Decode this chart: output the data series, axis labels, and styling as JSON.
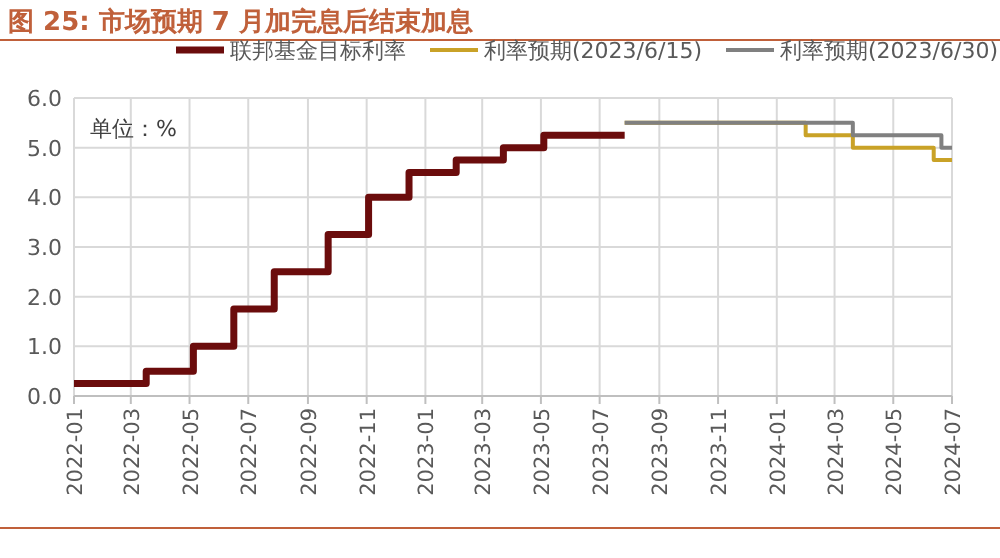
{
  "chart_data": {
    "type": "step",
    "title": "图 25: 市场预期 7 月加完息后结束加息",
    "annotations": [
      "单位：%"
    ],
    "xlim": [
      "2022-01-01",
      "2024-07-01"
    ],
    "xticks": [
      "2022-01",
      "2022-03",
      "2022-05",
      "2022-07",
      "2022-09",
      "2022-11",
      "2023-01",
      "2023-03",
      "2023-05",
      "2023-07",
      "2023-09",
      "2023-11",
      "2024-01",
      "2024-03",
      "2024-05",
      "2024-07"
    ],
    "ylim": [
      0,
      6
    ],
    "yticks": [
      {
        "value": 0,
        "label": "0.0"
      },
      {
        "value": 1,
        "label": "1.0"
      },
      {
        "value": 2,
        "label": "2.0"
      },
      {
        "value": 3,
        "label": "3.0"
      },
      {
        "value": 4,
        "label": "4.0"
      },
      {
        "value": 5,
        "label": "5.0"
      },
      {
        "value": 6,
        "label": "6.0"
      }
    ],
    "grid": true,
    "legend": "top",
    "line_style": "solid",
    "marker": "none",
    "series": [
      {
        "name": "联邦基金目标利率",
        "color": "#6b0c0c",
        "x": [
          "2022-01-01",
          "2022-03-17",
          "2022-05-05",
          "2022-06-16",
          "2022-07-28",
          "2022-09-22",
          "2022-11-03",
          "2022-12-15",
          "2023-02-02",
          "2023-03-23",
          "2023-05-04",
          "2023-07-27"
        ],
        "values": [
          0.25,
          0.5,
          1,
          1.75,
          2.5,
          3.25,
          4,
          4.5,
          4.75,
          5,
          5.25,
          5.25
        ]
      },
      {
        "name": "利率预期(2023/6/15)",
        "color": "#c9a227",
        "x": [
          "2023-07-27",
          "2024-01-31",
          "2024-03-20",
          "2024-06-12",
          "2024-07-01"
        ],
        "values": [
          5.5,
          5.25,
          5,
          4.75,
          4.75
        ]
      },
      {
        "name": "利率预期(2023/6/30)",
        "color": "#808080",
        "x": [
          "2023-07-27",
          "2024-03-20",
          "2024-06-20",
          "2024-07-01"
        ],
        "values": [
          5.5,
          5.25,
          5,
          5
        ]
      }
    ]
  }
}
